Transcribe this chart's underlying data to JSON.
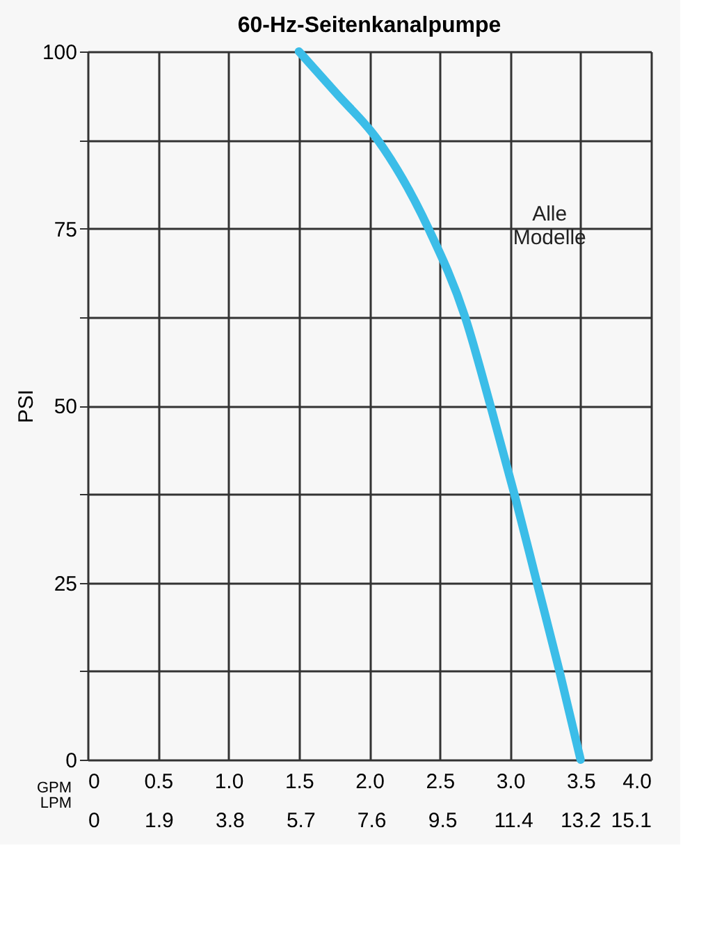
{
  "chart_data": {
    "type": "line",
    "title": "60-Hz-Seitenkanalpumpe",
    "ylabel": "PSI",
    "xlabel": "GPM",
    "x2label": "LPM",
    "x": [
      1.5,
      1.77,
      2.06,
      2.42,
      2.68,
      2.86,
      3.03,
      3.19,
      3.35,
      3.5
    ],
    "series": [
      {
        "color": "#3bbde8",
        "values": [
          100,
          94,
          87.5,
          75,
          62.5,
          50,
          37.5,
          25,
          12.5,
          0
        ]
      }
    ],
    "xlim": [
      0,
      4.0
    ],
    "xticks": [
      0,
      {
        "value": 0.5,
        "label": "0.5"
      },
      {
        "value": 1,
        "label": "1.0"
      },
      {
        "value": 1.5,
        "label": "1.5"
      },
      {
        "value": 2,
        "label": "2.0"
      },
      {
        "value": 2.5,
        "label": "2.5"
      },
      {
        "value": 3,
        "label": "3.0"
      },
      {
        "value": 3.5,
        "label": "3.5"
      },
      {
        "value": 4,
        "label": "4.0"
      }
    ],
    "x2lim": [
      0,
      15.1
    ],
    "x2ticks": [
      0,
      1.9,
      3.8,
      5.7,
      7.6,
      9.5,
      11.4,
      13.2,
      15.1
    ],
    "ylim": [
      0,
      100
    ],
    "yticks": [
      0,
      {
        "value": 12.5,
        "label": null
      },
      25,
      {
        "value": 37.5,
        "label": null
      },
      50,
      {
        "value": 62.5,
        "label": null
      },
      75,
      {
        "value": 87.5,
        "label": null
      },
      100
    ],
    "grid": true,
    "marker": "none",
    "line_style": "solid",
    "annotations": [
      "Alle Modelle"
    ]
  }
}
